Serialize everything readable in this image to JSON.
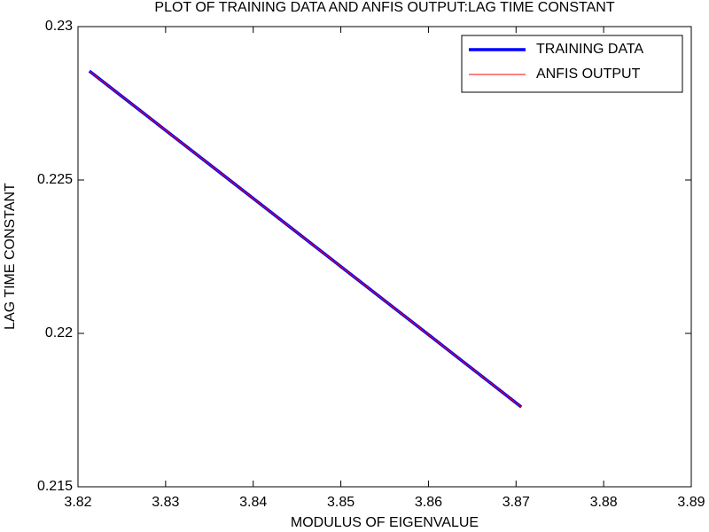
{
  "chart_data": {
    "type": "line",
    "title": "PLOT OF TRAINING DATA AND ANFIS OUTPUT:LAG TIME CONSTANT",
    "xlabel": "MODULUS OF EIGENVALUE",
    "ylabel": "LAG TIME CONSTANT",
    "x": [
      3.8213,
      3.83,
      3.84,
      3.85,
      3.86,
      3.8706
    ],
    "series": [
      {
        "name": "TRAINING DATA",
        "color": "#0000ff",
        "values": [
          0.22855,
          0.22662,
          0.2244,
          0.22218,
          0.21996,
          0.2176
        ]
      },
      {
        "name": "ANFIS OUTPUT",
        "color": "#ff0000",
        "values": [
          0.22855,
          0.22662,
          0.2244,
          0.22218,
          0.21996,
          0.2176
        ]
      }
    ],
    "xlim": [
      3.82,
      3.89
    ],
    "xticks": [
      3.82,
      3.83,
      3.84,
      3.85,
      3.86,
      3.87,
      3.88,
      3.89
    ],
    "ylim": [
      0.215,
      0.23
    ],
    "yticks": [
      0.215,
      0.22,
      0.225,
      0.23
    ],
    "legend": "northeast",
    "grid": false
  }
}
